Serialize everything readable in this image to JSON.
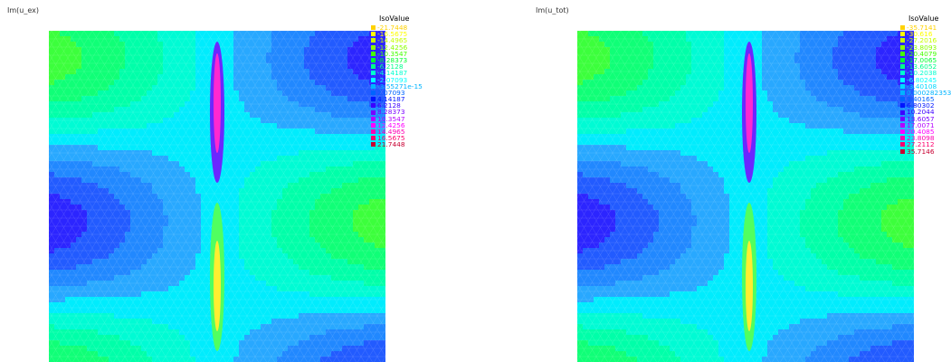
{
  "panels": [
    {
      "title": "Im(u_ex)",
      "legend_title": "IsoValue",
      "iso_values": [
        "-21.7448",
        "-16.5675",
        "-14.4965",
        "-12.4256",
        "-10.3547",
        "-8.28373",
        "-6.2128",
        "-4.14187",
        "-2.07093",
        "-3.55271e-15",
        "2.07093",
        "4.14187",
        "6.2128",
        "8.28373",
        "10.3547",
        "12.4256",
        "14.4965",
        "16.5675",
        "21.7448"
      ],
      "iso_colors": [
        "#ffd200",
        "#ffff00",
        "#c8ff00",
        "#8cff00",
        "#44ff00",
        "#00ff30",
        "#00ff8c",
        "#00ffd0",
        "#00ffff",
        "#00b4ff",
        "#0064ff",
        "#0014ff",
        "#3c00ff",
        "#7800ff",
        "#b400ff",
        "#ff00ff",
        "#ff00b4",
        "#ff006e",
        "#c80032"
      ],
      "field": "scattered"
    },
    {
      "title": "Im(u_tot)",
      "legend_title": "IsoValue",
      "iso_values": [
        "-35.7141",
        "-30.616",
        "-27.2016",
        "-23.8093",
        "-20.4079",
        "-17.0065",
        "-13.6052",
        "-10.2038",
        "-6.80245",
        "-3.40108",
        "0.000282353",
        "3.40165",
        "6.80302",
        "10.2044",
        "13.6057",
        "17.0071",
        "20.4085",
        "23.8098",
        "27.2112",
        "35.7146"
      ],
      "iso_colors": [
        "#ffd200",
        "#ffff00",
        "#c8ff00",
        "#8cff00",
        "#44ff00",
        "#00ff30",
        "#00ff8c",
        "#00ffd0",
        "#00ffff",
        "#00d8ff",
        "#00b4ff",
        "#0064ff",
        "#0014ff",
        "#3c00ff",
        "#7800ff",
        "#b400ff",
        "#ff00ff",
        "#ff00b4",
        "#ff006e",
        "#c80032"
      ],
      "field": "total"
    }
  ]
}
